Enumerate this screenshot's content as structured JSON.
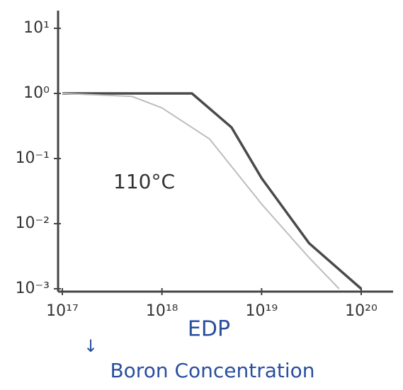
{
  "chart_data": {
    "type": "line",
    "x_label": "EDP",
    "annotations": [
      "110°C",
      "↓",
      "Boron Concentration"
    ],
    "log_x": true,
    "log_y": true,
    "xlim": [
      1e+17,
      1e+20
    ],
    "xticks": [
      {
        "value": 1e+17,
        "label": "10¹⁷"
      },
      {
        "value": 1e+18,
        "label": "10¹⁸"
      },
      {
        "value": 1e+19,
        "label": "10¹⁹"
      },
      {
        "value": 1e+20,
        "label": "10²⁰"
      }
    ],
    "ylim": [
      0.001,
      10
    ],
    "yticks": [
      {
        "value": 10,
        "label": "10¹"
      },
      {
        "value": 1,
        "label": "10⁰"
      },
      {
        "value": 0.1,
        "label": "10⁻¹"
      },
      {
        "value": 0.01,
        "label": "10⁻²"
      },
      {
        "value": 0.001,
        "label": "10⁻³"
      }
    ],
    "series": [
      {
        "color": "#4a4a4a",
        "x": [
          1e+17,
          1e+18,
          2e+18,
          5e+18,
          1e+19,
          3e+19,
          1e+20
        ],
        "values": [
          1,
          1,
          1,
          0.3,
          0.05,
          0.005,
          0.001
        ]
      },
      {
        "color": "#bdbdbd",
        "x": [
          1e+17,
          5e+17,
          1e+18,
          3e+18,
          1e+19,
          3e+19,
          6e+19
        ],
        "values": [
          1,
          0.9,
          0.6,
          0.2,
          0.02,
          0.003,
          0.001
        ]
      }
    ]
  }
}
